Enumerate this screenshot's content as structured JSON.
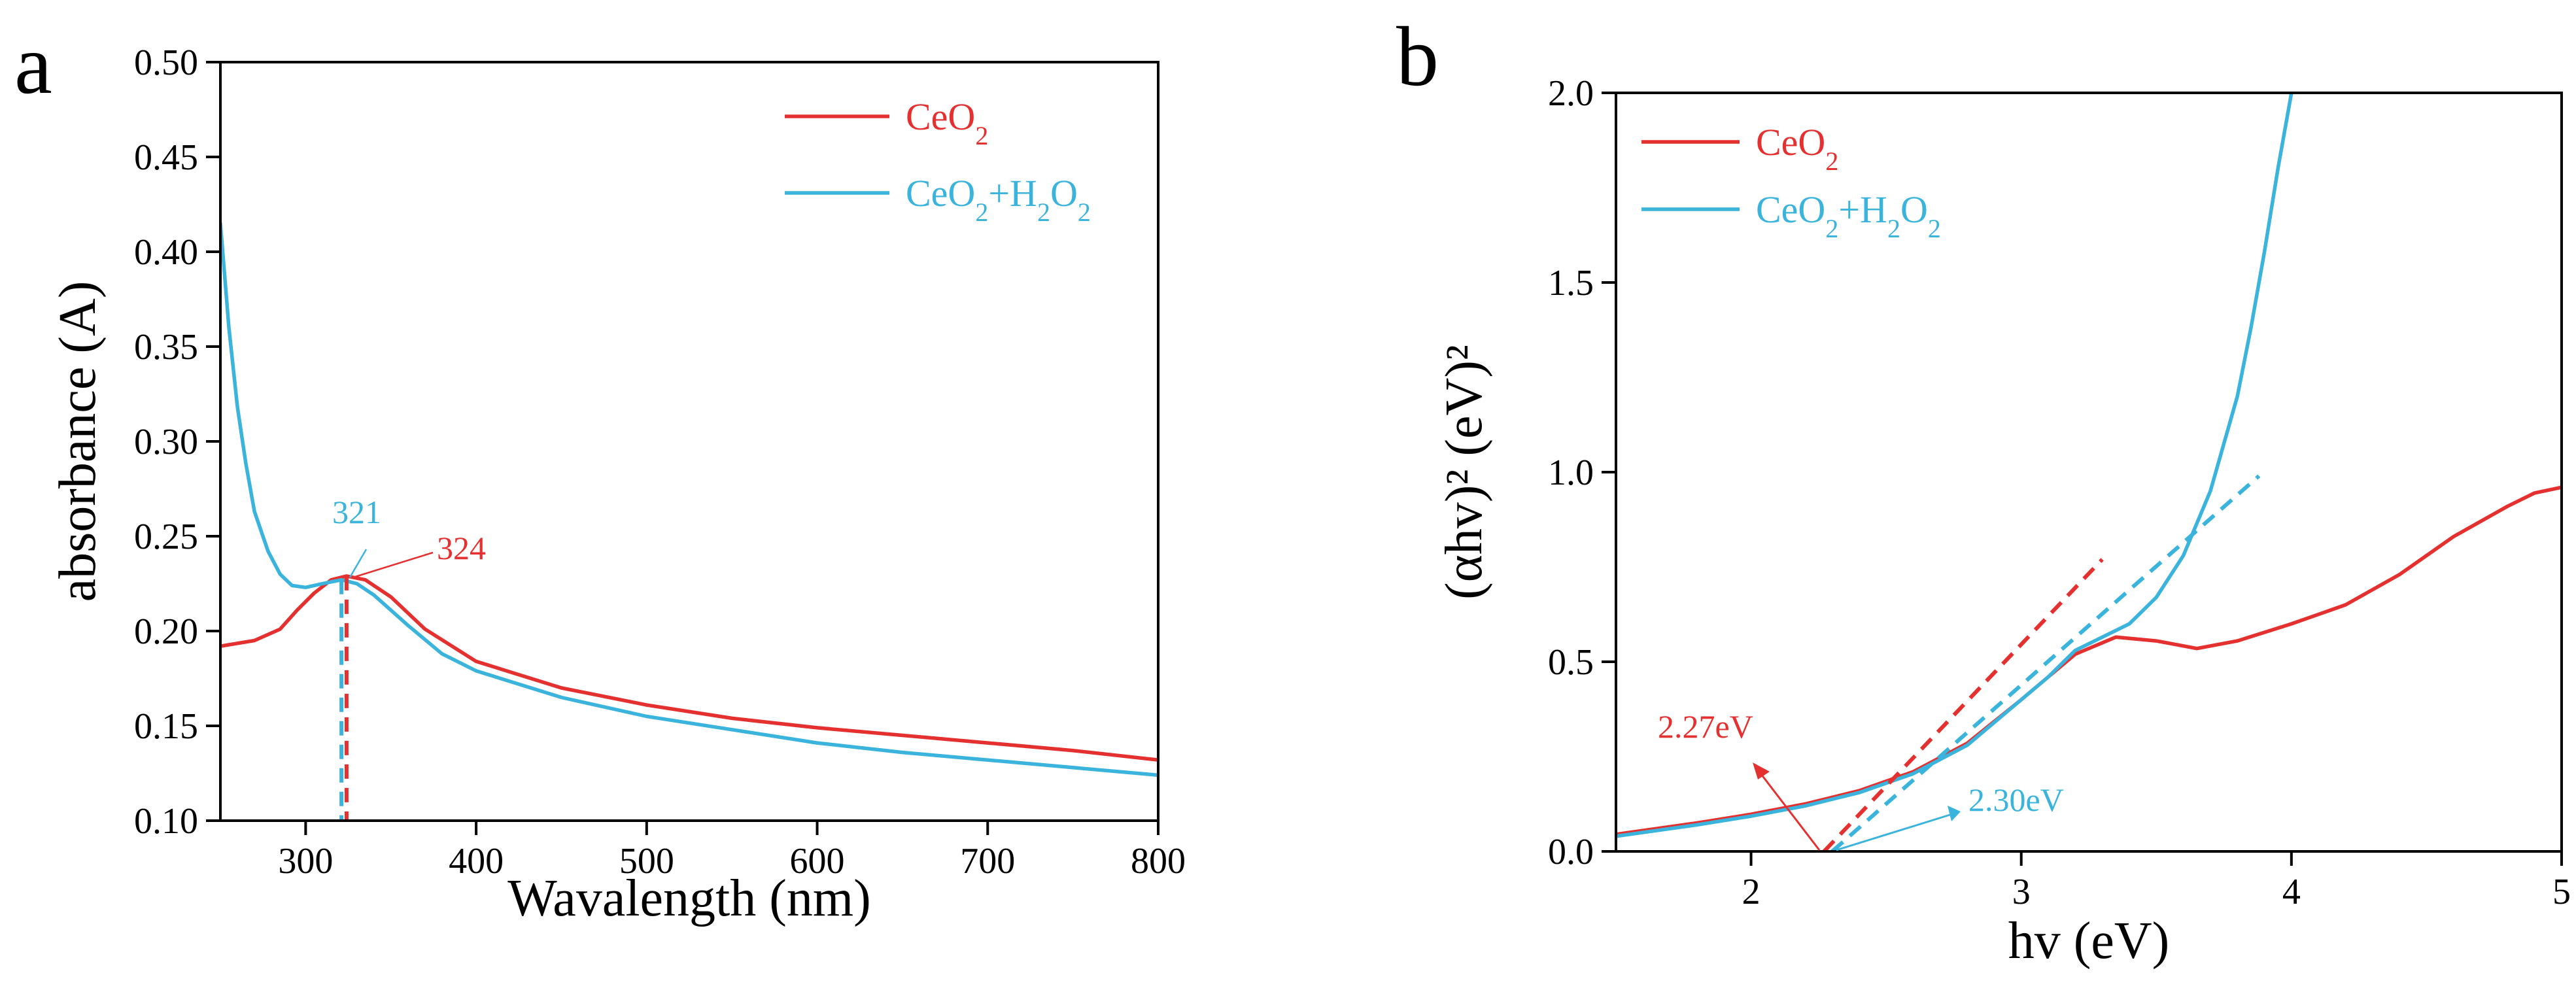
{
  "colors": {
    "ceo2": "#e53030",
    "ceo2_h2o2": "#3ab4dc",
    "axis": "#000000"
  },
  "chart_data": [
    {
      "panel": "a",
      "type": "line",
      "title": "",
      "xlabel": "Wavalength (nm)",
      "ylabel": "absorbance (A)",
      "xlim": [
        250,
        800
      ],
      "ylim": [
        0.1,
        0.5
      ],
      "xticks": [
        300,
        400,
        500,
        600,
        700,
        800
      ],
      "yticks": [
        0.1,
        0.15,
        0.2,
        0.25,
        0.3,
        0.35,
        0.4,
        0.45,
        0.5
      ],
      "xtick_labels": [
        "300",
        "400",
        "500",
        "600",
        "700",
        "800"
      ],
      "ytick_labels": [
        "0.10",
        "0.15",
        "0.20",
        "0.25",
        "0.30",
        "0.35",
        "0.40",
        "0.45",
        "0.50"
      ],
      "legend": [
        "CeO2",
        "CeO2+H2O2"
      ],
      "series": [
        {
          "name": "CeO2",
          "color": "#e53030",
          "x": [
            250,
            270,
            285,
            295,
            305,
            315,
            324,
            335,
            350,
            370,
            400,
            450,
            500,
            550,
            600,
            650,
            700,
            750,
            800
          ],
          "y": [
            0.192,
            0.195,
            0.201,
            0.211,
            0.22,
            0.227,
            0.229,
            0.227,
            0.218,
            0.201,
            0.184,
            0.17,
            0.161,
            0.154,
            0.149,
            0.145,
            0.141,
            0.137,
            0.132
          ]
        },
        {
          "name": "CeO2+H2O2",
          "color": "#3ab4dc",
          "x": [
            250,
            255,
            260,
            265,
            270,
            278,
            285,
            292,
            300,
            310,
            321,
            330,
            340,
            360,
            380,
            400,
            450,
            500,
            550,
            600,
            650,
            700,
            750,
            800
          ],
          "y": [
            0.415,
            0.36,
            0.318,
            0.288,
            0.263,
            0.242,
            0.23,
            0.224,
            0.223,
            0.225,
            0.227,
            0.225,
            0.219,
            0.203,
            0.188,
            0.179,
            0.165,
            0.155,
            0.148,
            0.141,
            0.136,
            0.132,
            0.128,
            0.124
          ]
        }
      ],
      "annotations": [
        {
          "text": "321",
          "x": 321,
          "y": 0.227,
          "color": "#3ab4dc"
        },
        {
          "text": "324",
          "x": 324,
          "y": 0.229,
          "color": "#e53030"
        }
      ]
    },
    {
      "panel": "b",
      "type": "line",
      "title": "",
      "xlabel": "hv (eV)",
      "ylabel": "(αhv)² (eV)²",
      "xlim": [
        1.5,
        5
      ],
      "ylim": [
        0,
        2.0
      ],
      "xticks": [
        2,
        3,
        4,
        5
      ],
      "yticks": [
        0.0,
        0.5,
        1.0,
        1.5,
        2.0
      ],
      "xtick_labels": [
        "2",
        "3",
        "4",
        "5"
      ],
      "ytick_labels": [
        "0.0",
        "0.5",
        "1.0",
        "1.5",
        "2.0"
      ],
      "legend": [
        "CeO2",
        "CeO2+H2O2"
      ],
      "series": [
        {
          "name": "CeO2",
          "color": "#e53030",
          "x": [
            1.5,
            1.8,
            2.0,
            2.2,
            2.4,
            2.6,
            2.8,
            3.0,
            3.1,
            3.2,
            3.35,
            3.5,
            3.65,
            3.8,
            4.0,
            4.2,
            4.4,
            4.6,
            4.8,
            4.9,
            5.0
          ],
          "y": [
            0.045,
            0.075,
            0.098,
            0.125,
            0.16,
            0.21,
            0.285,
            0.4,
            0.46,
            0.52,
            0.565,
            0.555,
            0.535,
            0.555,
            0.6,
            0.65,
            0.73,
            0.83,
            0.91,
            0.945,
            0.96
          ]
        },
        {
          "name": "CeO2+H2O2",
          "color": "#3ab4dc",
          "x": [
            1.5,
            1.8,
            2.0,
            2.2,
            2.4,
            2.6,
            2.8,
            3.0,
            3.1,
            3.2,
            3.3,
            3.4,
            3.5,
            3.6,
            3.7,
            3.8,
            3.85,
            3.9,
            3.95,
            4.0
          ],
          "y": [
            0.04,
            0.07,
            0.093,
            0.12,
            0.155,
            0.205,
            0.28,
            0.4,
            0.46,
            0.53,
            0.565,
            0.6,
            0.67,
            0.78,
            0.95,
            1.2,
            1.38,
            1.58,
            1.8,
            2.0
          ]
        }
      ],
      "tangents": [
        {
          "name": "CeO2 fit",
          "color": "#e53030",
          "x": [
            2.27,
            3.3
          ],
          "y": [
            0.0,
            0.77
          ]
        },
        {
          "name": "CeO2+H2O2 fit",
          "color": "#3ab4dc",
          "x": [
            2.3,
            3.88
          ],
          "y": [
            0.0,
            0.99
          ]
        }
      ],
      "annotations": [
        {
          "text": "2.27eV",
          "x": 2.27,
          "y": 0.0,
          "color": "#e53030"
        },
        {
          "text": "2.30eV",
          "x": 2.3,
          "y": 0.0,
          "color": "#3ab4dc"
        }
      ]
    }
  ]
}
